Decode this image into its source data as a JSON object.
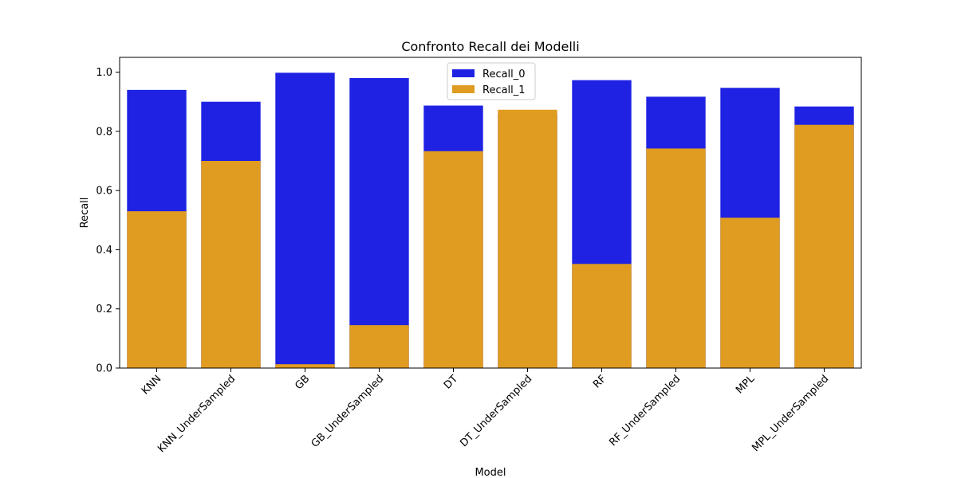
{
  "chart_data": {
    "type": "bar",
    "title": "Confronto Recall dei Modelli",
    "xlabel": "Model",
    "ylabel": "Recall",
    "ylim": [
      0,
      1.05
    ],
    "yticks": [
      "0.0",
      "0.2",
      "0.4",
      "0.6",
      "0.8",
      "1.0"
    ],
    "grid": false,
    "legend_position": "top-center",
    "categories": [
      "KNN",
      "KNN_UnderSampled",
      "GB",
      "GB_UnderSampled",
      "DT",
      "DT_UnderSampled",
      "RF",
      "RF_UnderSampled",
      "MPL",
      "MPL_UnderSampled"
    ],
    "series": [
      {
        "name": "Recall_0",
        "color": "#1f22e3",
        "values": [
          0.94,
          0.9,
          0.998,
          0.98,
          0.887,
          0.86,
          0.973,
          0.917,
          0.947,
          0.884
        ]
      },
      {
        "name": "Recall_1",
        "color": "#e09c21",
        "values": [
          0.53,
          0.7,
          0.013,
          0.145,
          0.733,
          0.873,
          0.352,
          0.742,
          0.508,
          0.822
        ]
      }
    ]
  }
}
